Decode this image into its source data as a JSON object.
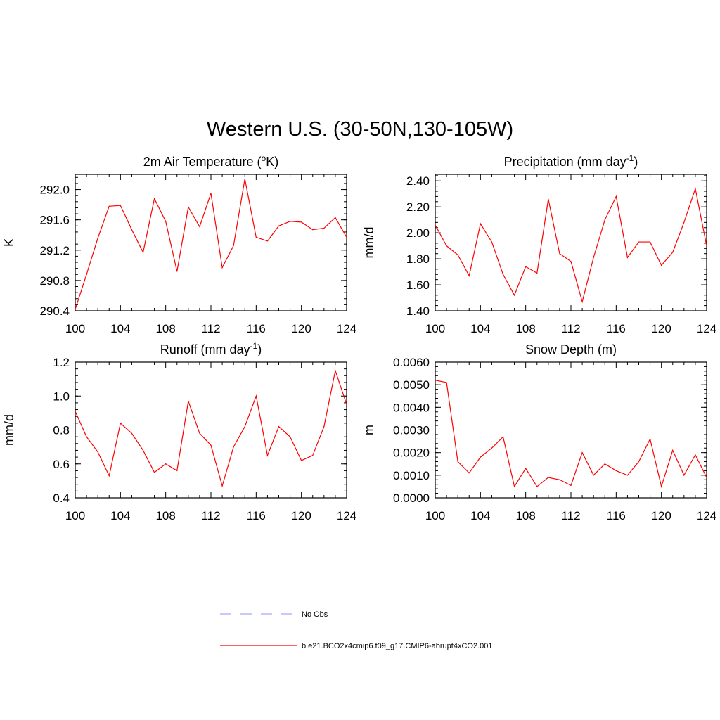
{
  "figure": {
    "title": "Western U.S. (30-50N,130-105W)"
  },
  "legend": {
    "items": [
      {
        "label": "No Obs",
        "color": "#a8a8ff",
        "dash": true
      },
      {
        "label": "b.e21.BCO2x4cmip6.f09_g17.CMIP6-abrupt4xCO2.001",
        "color": "#ff0000",
        "dash": false
      }
    ]
  },
  "chart_data": [
    {
      "type": "line",
      "title": "2m Air Temperature (",
      "title_super": "o",
      "title_tail": "K)",
      "ylabel": "K",
      "xlim": [
        100,
        124
      ],
      "ylim": [
        290.4,
        292.2
      ],
      "xticks": [
        "100",
        "104",
        "108",
        "112",
        "116",
        "120",
        "124"
      ],
      "yticks": [
        "290.4",
        "290.8",
        "291.2",
        "291.6",
        "292.0"
      ],
      "ytick_values": [
        290.4,
        290.8,
        291.2,
        291.6,
        292.0
      ],
      "x": [
        100,
        101,
        102,
        103,
        104,
        105,
        106,
        107,
        108,
        109,
        110,
        111,
        112,
        113,
        114,
        115,
        116,
        117,
        118,
        119,
        120,
        121,
        122,
        123,
        124
      ],
      "values": [
        290.42,
        290.88,
        291.36,
        291.78,
        291.79,
        291.47,
        291.17,
        291.88,
        291.58,
        290.92,
        291.77,
        291.51,
        291.95,
        290.97,
        291.26,
        292.14,
        291.37,
        291.32,
        291.52,
        291.58,
        291.57,
        291.47,
        291.49,
        291.63,
        291.37
      ],
      "color": "#ff0000"
    },
    {
      "type": "line",
      "title": "Precipitation (mm day",
      "title_super": "-1",
      "title_tail": ")",
      "ylabel": "mm/d",
      "xlim": [
        100,
        124
      ],
      "ylim": [
        1.4,
        2.45
      ],
      "xticks": [
        "100",
        "104",
        "108",
        "112",
        "116",
        "120",
        "124"
      ],
      "yticks": [
        "1.40",
        "1.60",
        "1.80",
        "2.00",
        "2.20",
        "2.40"
      ],
      "ytick_values": [
        1.4,
        1.6,
        1.8,
        2.0,
        2.2,
        2.4
      ],
      "x": [
        100,
        101,
        102,
        103,
        104,
        105,
        106,
        107,
        108,
        109,
        110,
        111,
        112,
        113,
        114,
        115,
        116,
        117,
        118,
        119,
        120,
        121,
        122,
        123,
        124
      ],
      "values": [
        2.06,
        1.9,
        1.83,
        1.67,
        2.07,
        1.93,
        1.68,
        1.52,
        1.74,
        1.69,
        2.26,
        1.84,
        1.78,
        1.47,
        1.81,
        2.1,
        2.28,
        1.81,
        1.93,
        1.93,
        1.75,
        1.85,
        2.08,
        2.34,
        1.9
      ],
      "color": "#ff0000"
    },
    {
      "type": "line",
      "title": "Runoff (mm day",
      "title_super": "-1",
      "title_tail": ")",
      "ylabel": "mm/d",
      "xlim": [
        100,
        124
      ],
      "ylim": [
        0.4,
        1.2
      ],
      "xticks": [
        "100",
        "104",
        "108",
        "112",
        "116",
        "120",
        "124"
      ],
      "yticks": [
        "0.4",
        "0.6",
        "0.8",
        "1.0",
        "1.2"
      ],
      "ytick_values": [
        0.4,
        0.6,
        0.8,
        1.0,
        1.2
      ],
      "x": [
        100,
        101,
        102,
        103,
        104,
        105,
        106,
        107,
        108,
        109,
        110,
        111,
        112,
        113,
        114,
        115,
        116,
        117,
        118,
        119,
        120,
        121,
        122,
        123,
        124
      ],
      "values": [
        0.91,
        0.76,
        0.67,
        0.53,
        0.84,
        0.78,
        0.68,
        0.55,
        0.6,
        0.56,
        0.97,
        0.78,
        0.71,
        0.47,
        0.7,
        0.82,
        1.0,
        0.65,
        0.82,
        0.76,
        0.62,
        0.65,
        0.82,
        1.15,
        0.95
      ],
      "color": "#ff0000"
    },
    {
      "type": "line",
      "title": "Snow Depth (m)",
      "title_super": "",
      "title_tail": "",
      "ylabel": "m",
      "xlim": [
        100,
        124
      ],
      "ylim": [
        0.0,
        0.006
      ],
      "xticks": [
        "100",
        "104",
        "108",
        "112",
        "116",
        "120",
        "124"
      ],
      "yticks": [
        "0.0000",
        "0.0010",
        "0.0020",
        "0.0030",
        "0.0040",
        "0.0050",
        "0.0060"
      ],
      "ytick_values": [
        0.0,
        0.001,
        0.002,
        0.003,
        0.004,
        0.005,
        0.006
      ],
      "x": [
        100,
        101,
        102,
        103,
        104,
        105,
        106,
        107,
        108,
        109,
        110,
        111,
        112,
        113,
        114,
        115,
        116,
        117,
        118,
        119,
        120,
        121,
        122,
        123,
        124
      ],
      "values": [
        0.0052,
        0.0051,
        0.0016,
        0.0011,
        0.0018,
        0.0022,
        0.0027,
        0.0005,
        0.0013,
        0.0005,
        0.0009,
        0.0008,
        0.00055,
        0.002,
        0.001,
        0.0015,
        0.0012,
        0.001,
        0.0016,
        0.0026,
        0.0005,
        0.0021,
        0.001,
        0.0019,
        0.0009
      ],
      "color": "#ff0000"
    }
  ]
}
